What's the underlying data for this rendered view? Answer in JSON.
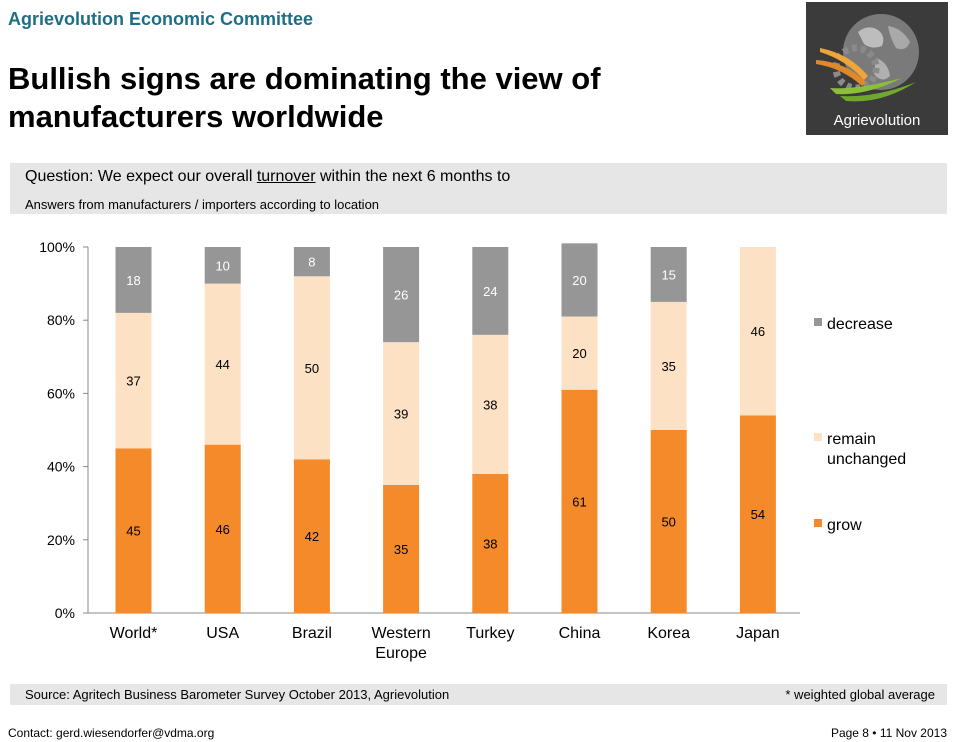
{
  "header": {
    "committee": "Agrievolution Economic Committee",
    "headline": "Bullish signs are dominating the view of manufacturers worldwide",
    "logo_text": "Agrievolution"
  },
  "question": {
    "prefix": "Question: We expect our overall ",
    "keyword": "turnover",
    "suffix": " within the next 6 months to",
    "subtitle": "Answers from manufacturers / importers according to location"
  },
  "footer": {
    "source": "Source: Agritech Business Barometer Survey October 2013, Agrievolution",
    "footnote": "* weighted global average",
    "contact": "Contact: gerd.wiesendorfer@vdma.org",
    "page": "Page 8 • 11 Nov 2013"
  },
  "colors": {
    "grow": "#f58a2b",
    "remain": "#fde1c4",
    "decrease": "#969696",
    "committee": "#1f6e87"
  },
  "chart_data": {
    "type": "bar",
    "stacked": true,
    "categories": [
      "World*",
      "USA",
      "Brazil",
      "Western Europe",
      "Turkey",
      "China",
      "Korea",
      "Japan"
    ],
    "series": [
      {
        "name": "grow",
        "values": [
          45,
          46,
          42,
          35,
          38,
          61,
          50,
          54
        ]
      },
      {
        "name": "remain unchanged",
        "values": [
          37,
          44,
          50,
          39,
          38,
          20,
          35,
          46
        ]
      },
      {
        "name": "decrease",
        "values": [
          18,
          10,
          8,
          26,
          24,
          20,
          15,
          0
        ]
      }
    ],
    "yticks": [
      "0%",
      "20%",
      "40%",
      "60%",
      "80%",
      "100%"
    ],
    "ylim": [
      0,
      100
    ],
    "legend_position": "right",
    "grid": false
  }
}
